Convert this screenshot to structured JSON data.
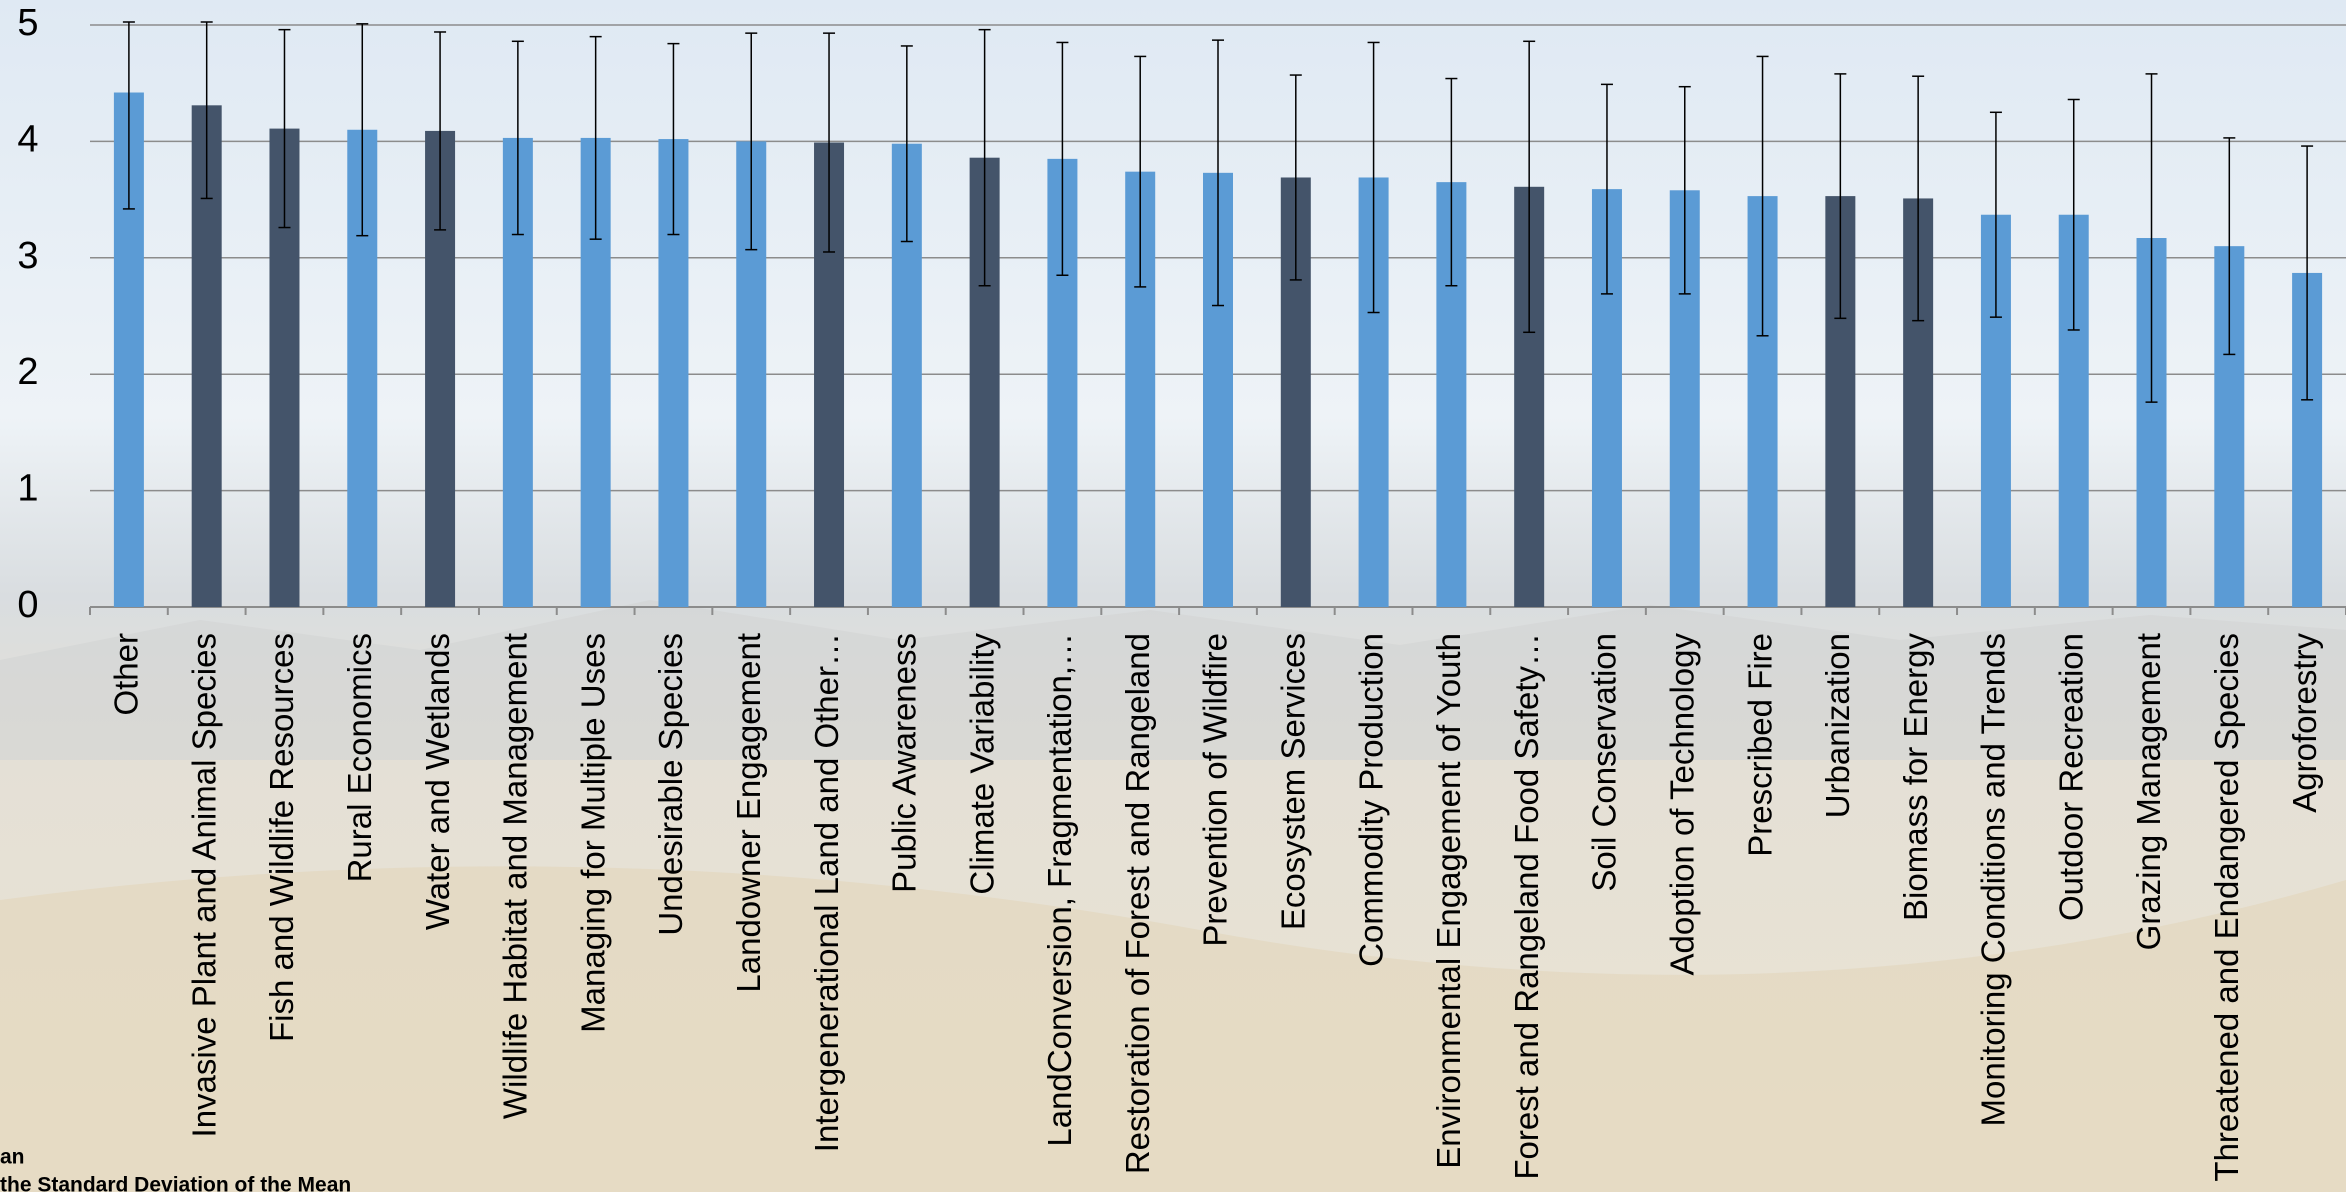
{
  "chart_data": {
    "type": "bar",
    "categories": [
      "Other",
      "Invasive Plant and Animal Species",
      "Fish and Wildlife Resources",
      "Rural Economics",
      "Water and Wetlands",
      "Wildlife Habitat and Management",
      "Managing for Multiple Uses",
      "Undesirable Species",
      "Landowner Engagement",
      "Intergenerational Land and Other…",
      "Public Awareness",
      "Climate Variability",
      "LandConversion, Fragmentation,…",
      "Restoration of Forest and Rangeland",
      "Prevention of Wildfire",
      "Ecosystem Services",
      "Commodity Production",
      "Environmental Engagement of Youth",
      "Forest and Rangeland Food Safety…",
      "Soil Conservation",
      "Adoption of Technology",
      "Prescribed Fire",
      "Urbanization",
      "Biomass for Energy",
      "Monitoring Conditions and Trends",
      "Outdoor Recreation",
      "Grazing Management",
      "Threatened and Endangered Species",
      "Agroforestry"
    ],
    "values": [
      4.42,
      4.31,
      4.11,
      4.1,
      4.09,
      4.03,
      4.03,
      4.02,
      4.0,
      3.99,
      3.98,
      3.86,
      3.85,
      3.74,
      3.73,
      3.69,
      3.69,
      3.65,
      3.61,
      3.59,
      3.58,
      3.53,
      3.53,
      3.51,
      3.37,
      3.37,
      3.17,
      3.1,
      2.87
    ],
    "errors": [
      1.0,
      0.8,
      0.85,
      0.91,
      0.85,
      0.83,
      0.87,
      0.82,
      0.93,
      0.94,
      0.84,
      1.1,
      1.0,
      0.99,
      1.14,
      0.88,
      1.16,
      0.89,
      1.25,
      0.9,
      0.89,
      1.2,
      1.05,
      1.05,
      0.88,
      0.99,
      1.41,
      0.93,
      1.09
    ],
    "colors": [
      "#5b9bd5",
      "#44546a",
      "#44546a",
      "#5b9bd5",
      "#44546a",
      "#5b9bd5",
      "#5b9bd5",
      "#5b9bd5",
      "#5b9bd5",
      "#44546a",
      "#5b9bd5",
      "#44546a",
      "#5b9bd5",
      "#5b9bd5",
      "#5b9bd5",
      "#44546a",
      "#5b9bd5",
      "#5b9bd5",
      "#44546a",
      "#5b9bd5",
      "#5b9bd5",
      "#5b9bd5",
      "#44546a",
      "#44546a",
      "#5b9bd5",
      "#5b9bd5",
      "#5b9bd5",
      "#5b9bd5",
      "#5b9bd5"
    ],
    "ylim": [
      0,
      5
    ],
    "yticks": [
      0,
      1,
      2,
      3,
      4,
      5
    ],
    "grid": true,
    "notes": [
      "an",
      "the Standard Deviation of the Mean"
    ]
  }
}
